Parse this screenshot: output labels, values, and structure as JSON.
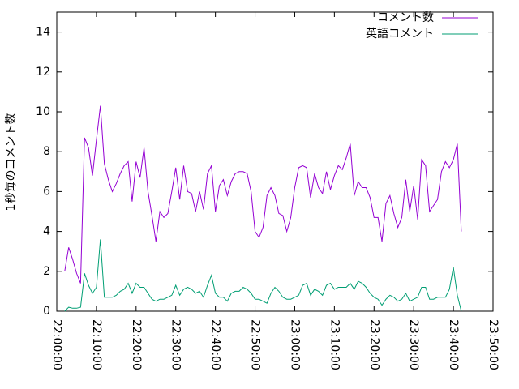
{
  "chart_data": {
    "type": "line",
    "y_label": "1秒毎のコメント数",
    "x": [
      "22:02:00",
      "22:03:00",
      "22:04:00",
      "22:05:00",
      "22:06:00",
      "22:07:00",
      "22:08:00",
      "22:09:00",
      "22:10:00",
      "22:11:00",
      "22:12:00",
      "22:13:00",
      "22:14:00",
      "22:15:00",
      "22:16:00",
      "22:17:00",
      "22:18:00",
      "22:19:00",
      "22:20:00",
      "22:21:00",
      "22:22:00",
      "22:23:00",
      "22:24:00",
      "22:25:00",
      "22:26:00",
      "22:27:00",
      "22:28:00",
      "22:29:00",
      "22:30:00",
      "22:31:00",
      "22:32:00",
      "22:33:00",
      "22:34:00",
      "22:35:00",
      "22:36:00",
      "22:37:00",
      "22:38:00",
      "22:39:00",
      "22:40:00",
      "22:41:00",
      "22:42:00",
      "22:43:00",
      "22:44:00",
      "22:45:00",
      "22:46:00",
      "22:47:00",
      "22:48:00",
      "22:49:00",
      "22:50:00",
      "22:51:00",
      "22:52:00",
      "22:53:00",
      "22:54:00",
      "22:55:00",
      "22:56:00",
      "22:57:00",
      "22:58:00",
      "22:59:00",
      "23:00:00",
      "23:01:00",
      "23:02:00",
      "23:03:00",
      "23:04:00",
      "23:05:00",
      "23:06:00",
      "23:07:00",
      "23:08:00",
      "23:09:00",
      "23:10:00",
      "23:11:00",
      "23:12:00",
      "23:13:00",
      "23:14:00",
      "23:15:00",
      "23:16:00",
      "23:17:00",
      "23:18:00",
      "23:19:00",
      "23:20:00",
      "23:21:00",
      "23:22:00",
      "23:23:00",
      "23:24:00",
      "23:25:00",
      "23:26:00",
      "23:27:00",
      "23:28:00",
      "23:29:00",
      "23:30:00",
      "23:31:00",
      "23:32:00",
      "23:33:00",
      "23:34:00",
      "23:35:00",
      "23:36:00",
      "23:37:00",
      "23:38:00",
      "23:39:00",
      "23:40:00",
      "23:41:00",
      "23:42:00"
    ],
    "series": [
      {
        "name": "コメント数",
        "color": "#9400d3",
        "values": [
          2.0,
          3.2,
          2.6,
          1.9,
          1.4,
          8.7,
          8.2,
          6.8,
          8.6,
          10.3,
          7.4,
          6.6,
          6.0,
          6.4,
          6.9,
          7.3,
          7.5,
          5.5,
          7.5,
          6.7,
          8.2,
          6.0,
          4.8,
          3.5,
          5.0,
          4.7,
          4.9,
          6.0,
          7.2,
          5.6,
          7.3,
          6.0,
          5.9,
          5.0,
          6.0,
          5.1,
          6.9,
          7.3,
          5.0,
          6.3,
          6.6,
          5.8,
          6.5,
          6.9,
          7.0,
          7.0,
          6.9,
          6.0,
          4.0,
          3.7,
          4.2,
          5.8,
          6.2,
          5.8,
          4.9,
          4.8,
          4.0,
          4.7,
          6.2,
          7.2,
          7.3,
          7.2,
          5.7,
          6.9,
          6.2,
          5.9,
          7.0,
          6.1,
          6.8,
          7.3,
          7.1,
          7.7,
          8.4,
          5.8,
          6.5,
          6.2,
          6.2,
          5.7,
          4.7,
          4.7,
          3.5,
          5.4,
          5.8,
          4.9,
          4.2,
          4.7,
          6.6,
          5.0,
          6.3,
          4.6,
          7.6,
          7.3,
          5.0,
          5.3,
          5.6,
          7.0,
          7.5,
          7.2,
          7.6,
          8.4,
          4.0
        ]
      },
      {
        "name": "英語コメント",
        "color": "#009e73",
        "values": [
          0.0,
          0.2,
          0.15,
          0.15,
          0.2,
          1.9,
          1.3,
          0.9,
          1.2,
          3.6,
          0.7,
          0.7,
          0.7,
          0.8,
          1.0,
          1.1,
          1.4,
          0.9,
          1.4,
          1.2,
          1.2,
          0.9,
          0.6,
          0.5,
          0.6,
          0.6,
          0.7,
          0.8,
          1.3,
          0.8,
          1.1,
          1.2,
          1.1,
          0.9,
          1.0,
          0.7,
          1.3,
          1.8,
          0.9,
          0.7,
          0.7,
          0.5,
          0.9,
          1.0,
          1.0,
          1.2,
          1.1,
          0.9,
          0.6,
          0.6,
          0.5,
          0.4,
          0.9,
          1.2,
          1.0,
          0.7,
          0.6,
          0.6,
          0.7,
          0.8,
          1.3,
          1.4,
          0.8,
          1.1,
          1.0,
          0.8,
          1.3,
          1.4,
          1.1,
          1.2,
          1.2,
          1.2,
          1.4,
          1.1,
          1.5,
          1.4,
          1.2,
          0.9,
          0.7,
          0.6,
          0.3,
          0.6,
          0.8,
          0.7,
          0.5,
          0.6,
          0.9,
          0.5,
          0.6,
          0.7,
          1.2,
          1.2,
          0.6,
          0.6,
          0.7,
          0.7,
          0.7,
          1.1,
          2.2,
          0.8,
          0.0
        ]
      }
    ],
    "xlim": [
      "22:00:00",
      "23:50:00"
    ],
    "xticks": [
      "22:00:00",
      "22:10:00",
      "22:20:00",
      "22:30:00",
      "22:40:00",
      "22:50:00",
      "23:00:00",
      "23:10:00",
      "23:20:00",
      "23:30:00",
      "23:40:00",
      "23:50:00"
    ],
    "ylim": [
      0,
      15
    ],
    "yticks": [
      0,
      2,
      4,
      6,
      8,
      10,
      12,
      14
    ],
    "legend": "top-right",
    "grid": false
  }
}
